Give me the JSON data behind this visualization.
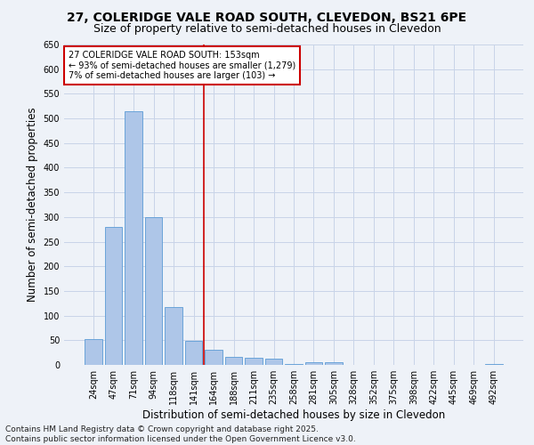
{
  "title_line1": "27, COLERIDGE VALE ROAD SOUTH, CLEVEDON, BS21 6PE",
  "title_line2": "Size of property relative to semi-detached houses in Clevedon",
  "xlabel": "Distribution of semi-detached houses by size in Clevedon",
  "ylabel": "Number of semi-detached properties",
  "categories": [
    "24sqm",
    "47sqm",
    "71sqm",
    "94sqm",
    "118sqm",
    "141sqm",
    "164sqm",
    "188sqm",
    "211sqm",
    "235sqm",
    "258sqm",
    "281sqm",
    "305sqm",
    "328sqm",
    "352sqm",
    "375sqm",
    "398sqm",
    "422sqm",
    "445sqm",
    "469sqm",
    "492sqm"
  ],
  "values": [
    52,
    280,
    515,
    300,
    118,
    48,
    30,
    17,
    15,
    12,
    2,
    6,
    5,
    0,
    0,
    0,
    0,
    0,
    0,
    0,
    1
  ],
  "bar_color": "#aec6e8",
  "bar_edge_color": "#5b9bd5",
  "grid_color": "#c8d4e8",
  "vline_x": 5.5,
  "vline_color": "#cc0000",
  "annotation_text": "27 COLERIDGE VALE ROAD SOUTH: 153sqm\n← 93% of semi-detached houses are smaller (1,279)\n7% of semi-detached houses are larger (103) →",
  "annotation_box_facecolor": "#ffffff",
  "annotation_box_edgecolor": "#cc0000",
  "ylim": [
    0,
    650
  ],
  "yticks": [
    0,
    50,
    100,
    150,
    200,
    250,
    300,
    350,
    400,
    450,
    500,
    550,
    600,
    650
  ],
  "footnote": "Contains HM Land Registry data © Crown copyright and database right 2025.\nContains public sector information licensed under the Open Government Licence v3.0.",
  "bg_color": "#eef2f8",
  "title_fontsize": 10,
  "subtitle_fontsize": 9,
  "axis_label_fontsize": 8.5,
  "tick_fontsize": 7,
  "annot_fontsize": 7,
  "footnote_fontsize": 6.5
}
